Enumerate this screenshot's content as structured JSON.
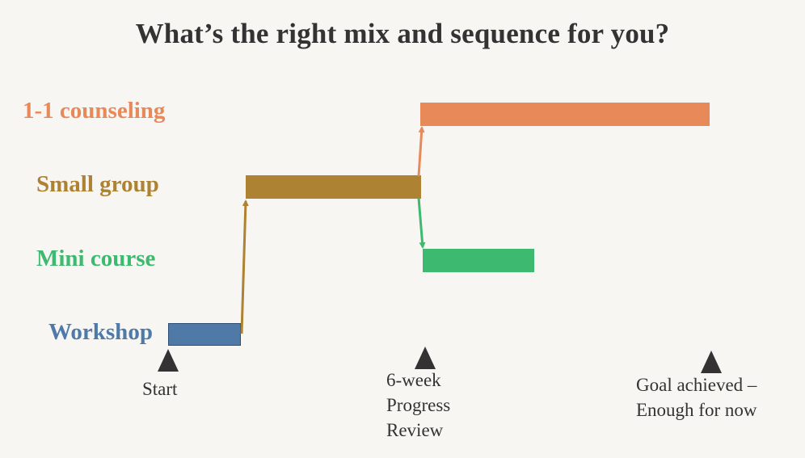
{
  "title": "What’s the right mix and sequence for you?",
  "rows": [
    {
      "label": "1-1 counseling",
      "color": "#e8895a"
    },
    {
      "label": "Small group",
      "color": "#ad8333"
    },
    {
      "label": "Mini course",
      "color": "#3dba6f"
    },
    {
      "label": "Workshop",
      "color": "#4f7aa8"
    }
  ],
  "markers": [
    {
      "lines": [
        "Start"
      ]
    },
    {
      "lines": [
        "6-week",
        "Progress",
        "Review"
      ]
    },
    {
      "lines": [
        "Goal achieved –",
        "Enough for now"
      ]
    }
  ],
  "connector_colors": {
    "workshop_to_small_group": "#ad8333",
    "small_group_to_counseling": "#e8895a",
    "small_group_to_mini_course": "#3dba6f"
  }
}
